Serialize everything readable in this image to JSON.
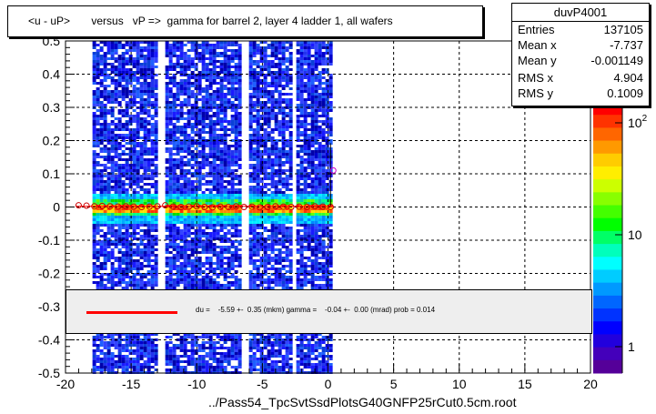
{
  "chart_data": {
    "type": "heatmap",
    "title": "<u - uP>       versus   vP =>  gamma for barrel 2, layer 4 ladder 1, all wafers",
    "xlabel": "../Pass54_TpcSvtSsdPlotsG40GNFP25rCut0.5cm.root",
    "ylabel": "",
    "xlim": [
      -20,
      20
    ],
    "ylim": [
      -0.5,
      0.5
    ],
    "x_ticks": [
      "-20",
      "-15",
      "-10",
      "-5",
      "0",
      "5",
      "10",
      "15",
      "20"
    ],
    "y_ticks": [
      "-0.5",
      "-0.4",
      "-0.3",
      "-0.2",
      "-0.1",
      "0",
      "0.1",
      "0.2",
      "0.3",
      "0.4",
      "0.5"
    ],
    "colorbar": {
      "scale": "log",
      "ticks": [
        "1",
        "10",
        "10^2"
      ]
    },
    "grid": true,
    "occupied_x_range": [
      -18.5,
      0.3
    ],
    "empty_x_bands": [
      -12.5,
      -6.5
    ],
    "profile_points": {
      "x": [
        -19.0,
        -18.4,
        -17.8,
        -17.2,
        -16.6,
        -16.0,
        -15.4,
        -14.8,
        -14.2,
        -13.6,
        -13.0,
        -12.4,
        -11.8,
        -11.2,
        -10.6,
        -10.0,
        -9.4,
        -8.8,
        -8.2,
        -7.6,
        -7.0,
        -6.4,
        -5.8,
        -5.2,
        -4.6,
        -4.0,
        -3.4,
        -2.8,
        -2.2,
        -1.6,
        -1.0,
        -0.4,
        0.2,
        0.4
      ],
      "y": [
        0.005,
        0.004,
        0.002,
        0.003,
        0.002,
        0.001,
        0.002,
        0.001,
        0.0,
        0.001,
        0.002,
        0.005,
        0.001,
        0.0,
        0.001,
        0.002,
        0.0,
        -0.001,
        0.001,
        0.0,
        0.002,
        0.0,
        0.001,
        -0.001,
        0.0,
        0.002,
        0.001,
        0.0,
        0.001,
        0.0,
        0.002,
        0.001,
        0.0,
        0.11
      ]
    },
    "fit": {
      "du_mkm": -5.59,
      "du_err": 0.35,
      "gamma_mrad": -0.04,
      "gamma_err": 0.0,
      "prob": 0.014
    }
  },
  "title_text": "<u - uP>       versus   vP =>  gamma for barrel 2, layer 4 ladder 1, all wafers",
  "stats": {
    "name": "duvP4001",
    "rows": [
      {
        "k": "Entries",
        "v": "137105"
      },
      {
        "k": "Mean x",
        "v": "-7.737"
      },
      {
        "k": "Mean y",
        "v": "-0.001149"
      },
      {
        "k": "RMS x",
        "v": "4.904"
      },
      {
        "k": "RMS y",
        "v": "0.1009"
      }
    ]
  },
  "fit_text": "du =    -5.59 +-  0.35 (mkm) gamma =    -0.04 +-  0.00 (mrad) prob = 0.014",
  "colors": {
    "fit_line": "#ff0000",
    "marker": "#ff0000"
  }
}
